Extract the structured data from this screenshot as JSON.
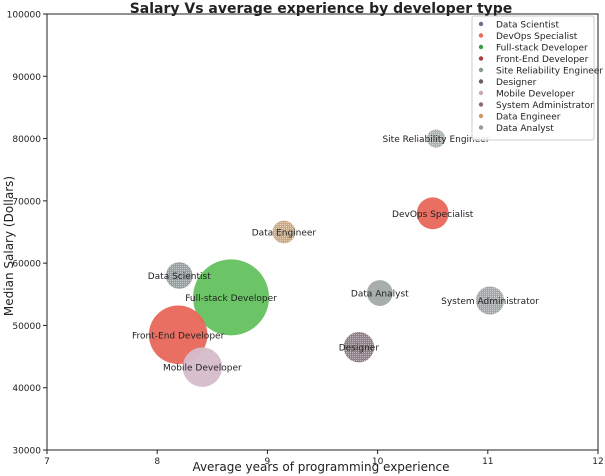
{
  "chart_data": {
    "type": "scatter",
    "title": "Salary Vs average experience by developer type",
    "xlabel": "Average years of programming experience",
    "ylabel": "Median Salary (Dollars)",
    "xlim": [
      7,
      12
    ],
    "ylim": [
      30000,
      100000
    ],
    "xticks": [
      "7",
      "8",
      "9",
      "10",
      "11",
      "12"
    ],
    "yticks": [
      "30000",
      "40000",
      "50000",
      "60000",
      "70000",
      "80000",
      "90000",
      "100000"
    ],
    "grid": false,
    "legend_position": "top-right",
    "series": [
      {
        "name": "Data Scientist",
        "label": "Data Scientist",
        "x": 8.2,
        "y": 58000,
        "size": 0.35,
        "color": "#8f9a9a",
        "pattern": "dots"
      },
      {
        "name": "DevOps Specialist",
        "label": "DevOps Specialist",
        "x": 10.5,
        "y": 68000,
        "size": 0.42,
        "color": "#e8675a",
        "pattern": "solid"
      },
      {
        "name": "Full-stack Developer",
        "label": "Full-stack Developer",
        "x": 8.67,
        "y": 54500,
        "size": 1.0,
        "color": "#63c25e",
        "pattern": "solid"
      },
      {
        "name": "Front-End Developer",
        "label": "Front-End Developer",
        "x": 8.19,
        "y": 48500,
        "size": 0.77,
        "color": "#e8675a",
        "pattern": "solid"
      },
      {
        "name": "Site Reliability Engineer",
        "label": "Site Reliability Engineer",
        "x": 10.53,
        "y": 80000,
        "size": 0.24,
        "color": "#a7afac",
        "pattern": "dots"
      },
      {
        "name": "Designer",
        "label": "Designer",
        "x": 9.83,
        "y": 46500,
        "size": 0.4,
        "color": "#8a7a82",
        "pattern": "dots"
      },
      {
        "name": "Mobile Developer",
        "label": "Mobile Developer",
        "x": 8.41,
        "y": 43300,
        "size": 0.52,
        "color": "#d6bccb",
        "pattern": "solid"
      },
      {
        "name": "System Administrator",
        "label": "System Administrator",
        "x": 11.02,
        "y": 54000,
        "size": 0.37,
        "color": "#9ea2a4",
        "pattern": "dots"
      },
      {
        "name": "Data Engineer",
        "label": "Data Engineer",
        "x": 9.15,
        "y": 65000,
        "size": 0.3,
        "color": "#c9a47d",
        "pattern": "dots"
      },
      {
        "name": "Data Analyst",
        "label": "Data Analyst",
        "x": 10.02,
        "y": 55200,
        "size": 0.34,
        "color": "#a3aaa8",
        "pattern": "solid"
      }
    ],
    "legend_colors": [
      "#6a6f8a",
      "#e8675a",
      "#3e9a4a",
      "#a0413c",
      "#8a9a8a",
      "#6b5a6a",
      "#c9a8b8",
      "#8a6a7a",
      "#c99a6a",
      "#9a9a9a"
    ]
  }
}
